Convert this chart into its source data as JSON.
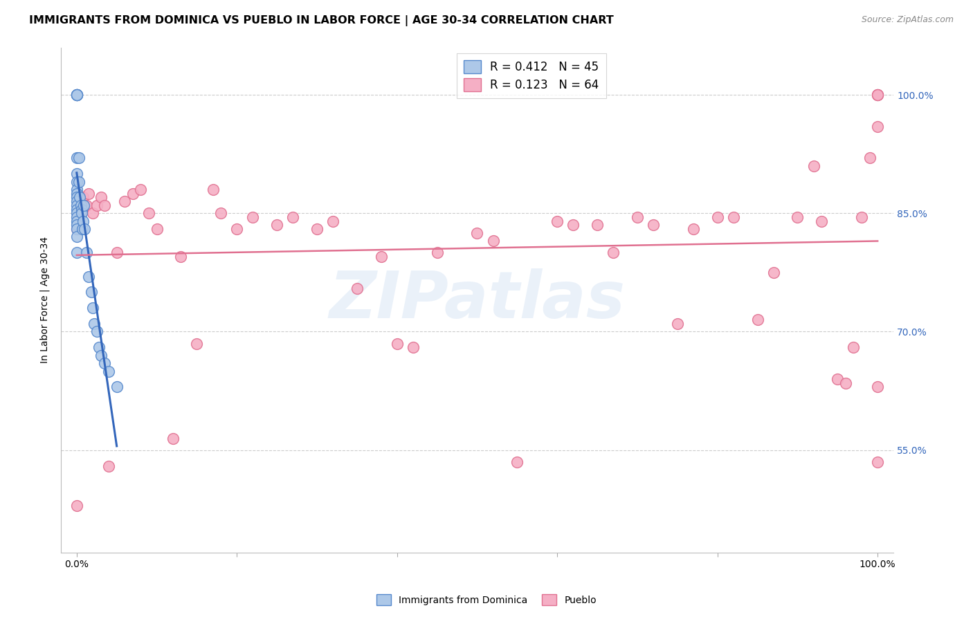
{
  "title": "IMMIGRANTS FROM DOMINICA VS PUEBLO IN LABOR FORCE | AGE 30-34 CORRELATION CHART",
  "source": "Source: ZipAtlas.com",
  "ylabel": "In Labor Force | Age 30-34",
  "xlim": [
    -0.02,
    1.02
  ],
  "ylim": [
    0.42,
    1.06
  ],
  "x_ticks": [
    0.0,
    0.2,
    0.4,
    0.6,
    0.8,
    1.0
  ],
  "y_ticks": [
    0.55,
    0.7,
    0.85,
    1.0
  ],
  "y_tick_labels": [
    "55.0%",
    "70.0%",
    "85.0%",
    "100.0%"
  ],
  "dominica_color": "#adc8e8",
  "dominica_edge": "#5588cc",
  "pueblo_color": "#f5afc5",
  "pueblo_edge": "#e07090",
  "trend_dominica_color": "#3366bb",
  "trend_pueblo_color": "#e07090",
  "watermark_text": "ZIPatlas",
  "dominica_x": [
    0.0,
    0.0,
    0.0,
    0.0,
    0.0,
    0.0,
    0.0,
    0.0,
    0.0,
    0.0,
    0.0,
    0.0,
    0.0,
    0.0,
    0.0,
    0.0,
    0.0,
    0.0,
    0.0,
    0.0,
    0.0,
    0.0,
    0.0,
    0.0,
    0.003,
    0.003,
    0.004,
    0.005,
    0.006,
    0.006,
    0.007,
    0.008,
    0.009,
    0.01,
    0.012,
    0.015,
    0.018,
    0.02,
    0.022,
    0.025,
    0.028,
    0.03,
    0.035,
    0.04,
    0.05
  ],
  "dominica_y": [
    1.0,
    1.0,
    1.0,
    1.0,
    1.0,
    1.0,
    1.0,
    1.0,
    0.92,
    0.9,
    0.89,
    0.88,
    0.875,
    0.87,
    0.865,
    0.86,
    0.855,
    0.85,
    0.845,
    0.84,
    0.835,
    0.83,
    0.82,
    0.8,
    0.92,
    0.89,
    0.87,
    0.86,
    0.855,
    0.85,
    0.83,
    0.84,
    0.86,
    0.83,
    0.8,
    0.77,
    0.75,
    0.73,
    0.71,
    0.7,
    0.68,
    0.67,
    0.66,
    0.65,
    0.63
  ],
  "pueblo_x": [
    0.0,
    0.0,
    0.005,
    0.008,
    0.01,
    0.012,
    0.015,
    0.02,
    0.025,
    0.03,
    0.035,
    0.04,
    0.05,
    0.06,
    0.07,
    0.08,
    0.09,
    0.1,
    0.12,
    0.13,
    0.15,
    0.17,
    0.18,
    0.2,
    0.22,
    0.25,
    0.27,
    0.3,
    0.32,
    0.35,
    0.38,
    0.4,
    0.42,
    0.45,
    0.5,
    0.52,
    0.55,
    0.6,
    0.62,
    0.65,
    0.67,
    0.7,
    0.72,
    0.75,
    0.77,
    0.8,
    0.82,
    0.85,
    0.87,
    0.9,
    0.92,
    0.93,
    0.95,
    0.96,
    0.97,
    0.98,
    0.99,
    1.0,
    1.0,
    1.0,
    1.0,
    1.0,
    1.0,
    1.0
  ],
  "pueblo_y": [
    0.48,
    0.83,
    0.85,
    0.87,
    0.86,
    0.86,
    0.875,
    0.85,
    0.86,
    0.87,
    0.86,
    0.53,
    0.8,
    0.865,
    0.875,
    0.88,
    0.85,
    0.83,
    0.565,
    0.795,
    0.685,
    0.88,
    0.85,
    0.83,
    0.845,
    0.835,
    0.845,
    0.83,
    0.84,
    0.755,
    0.795,
    0.685,
    0.68,
    0.8,
    0.825,
    0.815,
    0.535,
    0.84,
    0.835,
    0.835,
    0.8,
    0.845,
    0.835,
    0.71,
    0.83,
    0.845,
    0.845,
    0.715,
    0.775,
    0.845,
    0.91,
    0.84,
    0.64,
    0.635,
    0.68,
    0.845,
    0.92,
    1.0,
    1.0,
    1.0,
    1.0,
    0.96,
    0.63,
    0.535
  ],
  "background_color": "#ffffff",
  "grid_color": "#cccccc",
  "title_fontsize": 11.5,
  "axis_label_fontsize": 10,
  "tick_fontsize": 10,
  "legend_fontsize": 12,
  "source_fontsize": 9
}
